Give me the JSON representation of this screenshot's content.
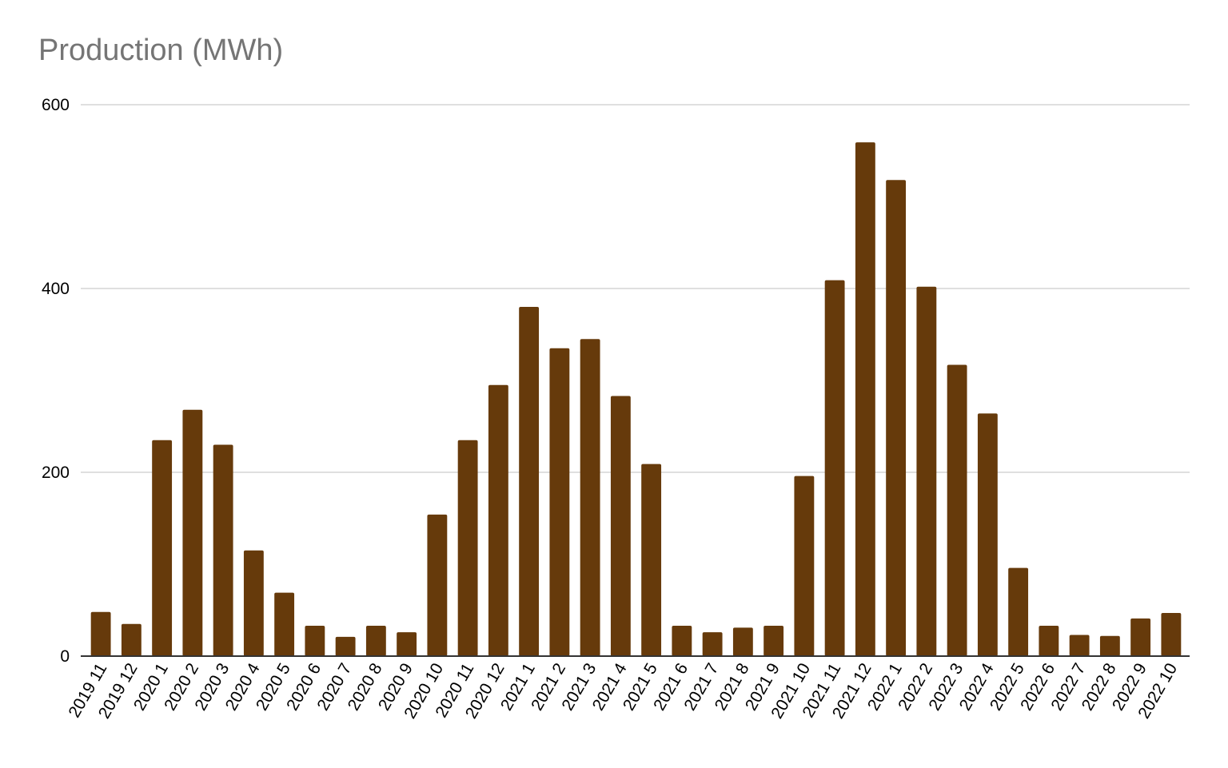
{
  "chart_data": {
    "type": "bar",
    "title": "Production (MWh)",
    "xlabel": "",
    "ylabel": "",
    "ylim": [
      0,
      600
    ],
    "yticks": [
      0,
      200,
      400,
      600
    ],
    "grid": true,
    "legend": "none",
    "bar_color": "#663a0b",
    "grid_color": "#cccccc",
    "axis_color": "#333333",
    "categories": [
      "2019 11",
      "2019 12",
      "2020 1",
      "2020 2",
      "2020 3",
      "2020 4",
      "2020 5",
      "2020 6",
      "2020 7",
      "2020 8",
      "2020 9",
      "2020 10",
      "2020 11",
      "2020 12",
      "2021 1",
      "2021 2",
      "2021 3",
      "2021 4",
      "2021 5",
      "2021 6",
      "2021 7",
      "2021 8",
      "2021 9",
      "2021 10",
      "2021 11",
      "2021 12",
      "2022 1",
      "2022 2",
      "2022 3",
      "2022 4",
      "2022 5",
      "2022 6",
      "2022 7",
      "2022 8",
      "2022 9",
      "2022 10"
    ],
    "values": [
      48,
      35,
      235,
      268,
      230,
      115,
      69,
      33,
      21,
      33,
      26,
      154,
      235,
      295,
      380,
      335,
      345,
      283,
      209,
      33,
      26,
      31,
      33,
      196,
      409,
      559,
      518,
      402,
      317,
      264,
      96,
      33,
      23,
      22,
      41,
      47
    ]
  }
}
